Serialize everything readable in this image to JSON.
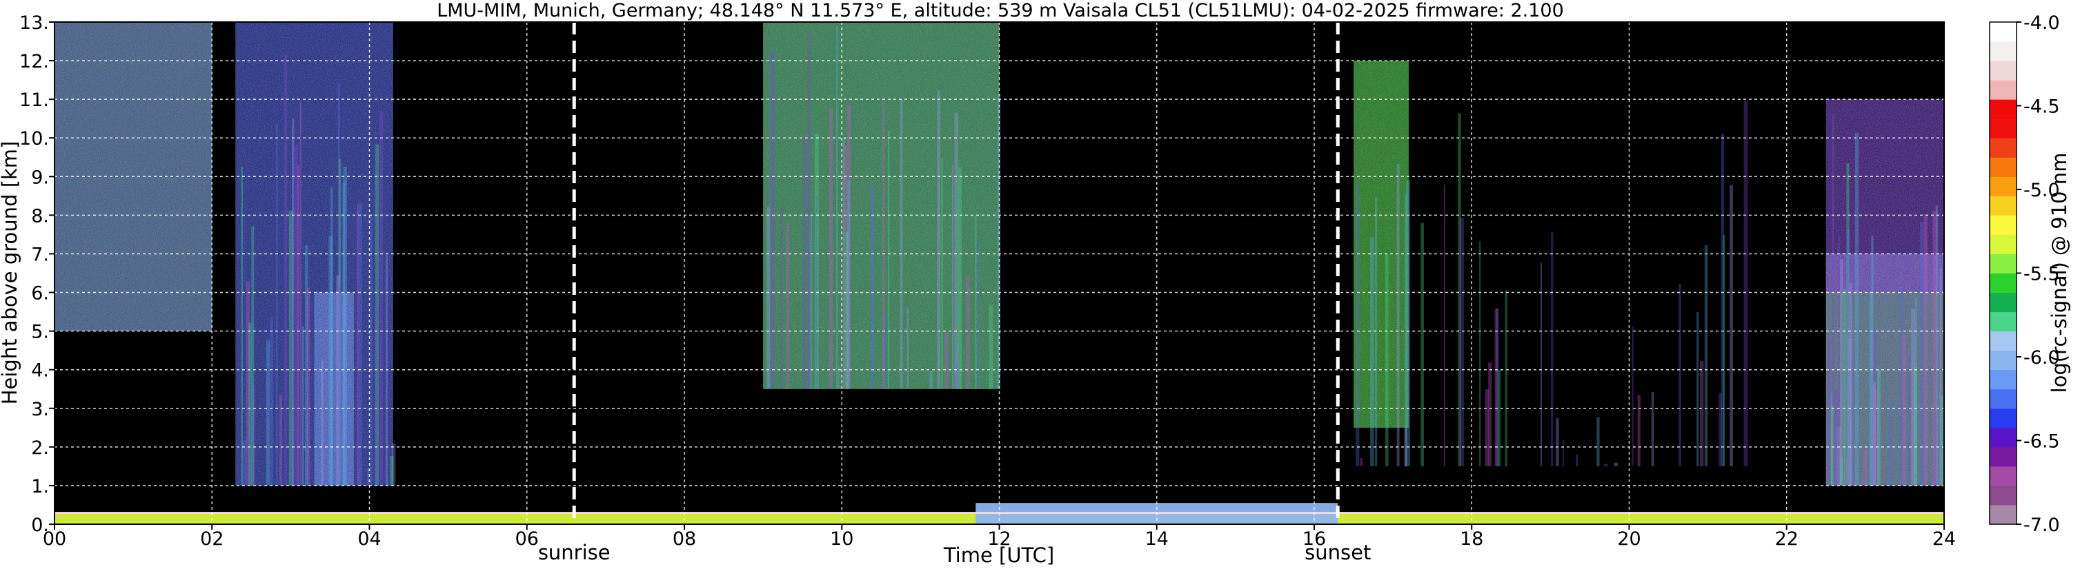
{
  "chart_data": {
    "type": "heatmap",
    "title": "LMU-MIM, Munich, Germany; 48.148° N 11.573° E, altitude: 539 m    Vaisala CL51 (CL51LMU): 04-02-2025    firmware: 2.100",
    "xlabel": "Time [UTC]",
    "ylabel": "Height above ground [km]",
    "xlim": [
      0,
      24
    ],
    "ylim": [
      0,
      13
    ],
    "x_ticks": [
      "00",
      "02",
      "04",
      "06",
      "08",
      "10",
      "12",
      "14",
      "16",
      "18",
      "20",
      "22",
      "24"
    ],
    "y_ticks": [
      "0.",
      "1.",
      "2.",
      "3.",
      "4.",
      "5.",
      "6.",
      "7.",
      "8.",
      "9.",
      "10.",
      "11.",
      "12.",
      "13."
    ],
    "grid": true,
    "events": [
      {
        "label": "sunrise",
        "time": 6.6
      },
      {
        "label": "sunset",
        "time": 16.3
      }
    ],
    "colorbar": {
      "label": "log(rc-signal) @ 910 nm",
      "range": [
        -7.0,
        -4.0
      ],
      "ticks": [
        "-4.0",
        "-4.5",
        "-5.0",
        "-5.5",
        "-6.0",
        "-6.5",
        "-7.0"
      ],
      "colors": [
        "#a58aa5",
        "#8e4a8e",
        "#a44aa4",
        "#7a1aa0",
        "#5a14c8",
        "#2a3cf0",
        "#4a70f0",
        "#6a9af2",
        "#8cb6f0",
        "#a6c8f0",
        "#4ad68a",
        "#14b050",
        "#2cd22a",
        "#8af042",
        "#d8f83a",
        "#f8f83c",
        "#f8d020",
        "#f8a010",
        "#f87810",
        "#f04018",
        "#f01010",
        "#f00a0a",
        "#f0b4b4",
        "#f0d8d8",
        "#f4f0f0",
        "#ffffff"
      ]
    },
    "layers": [
      {
        "x": [
          0,
          24
        ],
        "y": [
          0,
          0.3
        ],
        "value": -5.3
      },
      {
        "x": [
          11.7,
          16.3
        ],
        "y": [
          0,
          0.55
        ],
        "value": -6.0
      },
      {
        "x": [
          0.0,
          2.0
        ],
        "y": [
          5.0,
          13.0
        ],
        "value": -6.2
      },
      {
        "x": [
          2.3,
          4.3
        ],
        "y": [
          1.0,
          13.0
        ],
        "value": -6.4
      },
      {
        "x": [
          3.3,
          3.8
        ],
        "y": [
          1.0,
          6.0
        ],
        "value": -6.3
      },
      {
        "x": [
          9.0,
          12.0
        ],
        "y": [
          3.5,
          13.0
        ],
        "value": -5.8
      },
      {
        "x": [
          16.5,
          17.2
        ],
        "y": [
          2.5,
          12.0
        ],
        "value": -5.6
      },
      {
        "x": [
          22.5,
          24.0
        ],
        "y": [
          1.0,
          7.0
        ],
        "value": -6.0
      },
      {
        "x": [
          22.5,
          24.0
        ],
        "y": [
          6.0,
          11.0
        ],
        "value": -6.5
      }
    ]
  }
}
